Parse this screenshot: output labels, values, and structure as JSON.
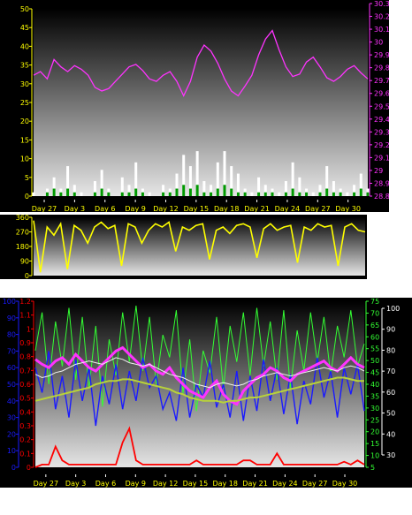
{
  "colors": {
    "frame": "#000000",
    "gradient_top": "#000000",
    "gradient_bottom": "#e6e6e6",
    "white": "#ffffff",
    "magenta": "#ff33ff",
    "green": "#009900",
    "yellow": "#ffff00",
    "lime": "#33ff33",
    "blue": "#1a1aff",
    "red": "#ff0000",
    "olive": "#b8d23a",
    "silver": "#f0f0f0"
  },
  "x_ticks": [
    "Day 27",
    "Day 3",
    "Day 6",
    "Day 9",
    "Day 12",
    "Day 15",
    "Day 18",
    "Day 21",
    "Day 24",
    "Day 27",
    "Day 30"
  ],
  "chart_data": [
    {
      "type": "line",
      "panel": "top",
      "x_ticks": [
        "Day 27",
        "Day 3",
        "Day 6",
        "Day 9",
        "Day 12",
        "Day 15",
        "Day 18",
        "Day 21",
        "Day 24",
        "Day 27",
        "Day 30"
      ],
      "y_left_ticks": [
        "0",
        "5",
        "10",
        "15",
        "20",
        "25",
        "30",
        "35",
        "40",
        "45",
        "50"
      ],
      "y_right_ticks": [
        "28.8",
        "28.9",
        "29",
        "29.1",
        "29.2",
        "29.3",
        "29.4",
        "29.5",
        "29.6",
        "29.7",
        "29.8",
        "29.9",
        "30",
        "30.1",
        "30.2",
        "30.3"
      ],
      "ylim_left": [
        0,
        50
      ],
      "ylim_right": [
        28.75,
        30.3
      ],
      "grid": false,
      "series": [
        {
          "axis": "right",
          "color": "magenta",
          "style": "line",
          "values": [
            29.75,
            29.78,
            29.72,
            29.88,
            29.82,
            29.78,
            29.83,
            29.8,
            29.75,
            29.65,
            29.62,
            29.64,
            29.7,
            29.76,
            29.82,
            29.84,
            29.79,
            29.72,
            29.7,
            29.75,
            29.78,
            29.7,
            29.58,
            29.7,
            29.9,
            30.0,
            29.95,
            29.85,
            29.72,
            29.62,
            29.58,
            29.66,
            29.75,
            29.92,
            30.05,
            30.12,
            29.96,
            29.82,
            29.74,
            29.76,
            29.86,
            29.9,
            29.82,
            29.73,
            29.7,
            29.74,
            29.8,
            29.83,
            29.77,
            29.72
          ]
        },
        {
          "axis": "left",
          "color": "white",
          "style": "bar",
          "values": [
            1,
            0,
            2,
            5,
            2,
            8,
            3,
            1,
            0,
            4,
            7,
            2,
            0,
            5,
            3,
            9,
            2,
            1,
            0,
            3,
            2,
            6,
            11,
            8,
            12,
            4,
            3,
            9,
            12,
            8,
            6,
            2,
            1,
            5,
            3,
            2,
            1,
            4,
            9,
            5,
            2,
            1,
            3,
            8,
            4,
            2,
            1,
            3,
            6,
            2
          ]
        },
        {
          "axis": "left",
          "color": "green",
          "style": "bar",
          "values": [
            0,
            0,
            1,
            2,
            1,
            2,
            1,
            0,
            0,
            1,
            2,
            1,
            0,
            1,
            1,
            2,
            1,
            0,
            0,
            1,
            1,
            2,
            3,
            2,
            3,
            1,
            1,
            2,
            3,
            2,
            1,
            1,
            0,
            1,
            1,
            1,
            0,
            1,
            2,
            1,
            1,
            0,
            1,
            2,
            1,
            1,
            0,
            1,
            2,
            1
          ]
        }
      ]
    },
    {
      "type": "line",
      "panel": "middle",
      "y_left_ticks": [
        "0",
        "90",
        "180",
        "270",
        "360"
      ],
      "ylim_left": [
        0,
        360
      ],
      "grid": false,
      "series": [
        {
          "axis": "left",
          "color": "yellow",
          "style": "line",
          "values": [
            340,
            20,
            300,
            250,
            320,
            40,
            310,
            280,
            200,
            300,
            330,
            290,
            310,
            60,
            320,
            300,
            200,
            280,
            320,
            300,
            330,
            150,
            300,
            280,
            310,
            320,
            100,
            280,
            300,
            260,
            310,
            320,
            300,
            110,
            290,
            320,
            280,
            300,
            310,
            80,
            300,
            280,
            320,
            300,
            310,
            60,
            300,
            320,
            280,
            270
          ]
        }
      ]
    },
    {
      "type": "line",
      "panel": "bottom",
      "x_ticks": [
        "Day 27",
        "Day 3",
        "Day 6",
        "Day 9",
        "Day 12",
        "Day 15",
        "Day 18",
        "Day 21",
        "Day 24",
        "Day 27",
        "Day 30"
      ],
      "y_left_outer_ticks": [
        "0",
        "10",
        "20",
        "30",
        "40",
        "50",
        "60",
        "70",
        "80",
        "90",
        "100"
      ],
      "y_left_inner_ticks": [
        "0",
        "0.1",
        "0.2",
        "0.3",
        "0.4",
        "0.5",
        "0.6",
        "0.7",
        "0.8",
        "0.9",
        "1",
        "1.1",
        "1.2"
      ],
      "y_right_inner_ticks": [
        "5",
        "10",
        "15",
        "20",
        "25",
        "30",
        "35",
        "40",
        "45",
        "50",
        "55",
        "60",
        "65",
        "70",
        "75"
      ],
      "y_right_outer_ticks": [
        "30",
        "40",
        "50",
        "60",
        "70",
        "80",
        "90",
        "100"
      ],
      "ylim_left_outer": [
        0,
        100
      ],
      "ylim_left_inner": [
        0,
        1.2
      ],
      "ylim_right_inner": [
        3,
        77
      ],
      "grid": false,
      "series": [
        {
          "axis": "right_inner",
          "color": "lime",
          "style": "line",
          "values": [
            55,
            72,
            40,
            68,
            48,
            74,
            42,
            70,
            38,
            66,
            30,
            60,
            44,
            72,
            50,
            75,
            46,
            70,
            40,
            62,
            52,
            73,
            36,
            60,
            28,
            55,
            45,
            70,
            38,
            66,
            50,
            72,
            44,
            74,
            48,
            68,
            42,
            73,
            38,
            64,
            46,
            72,
            50,
            70,
            44,
            66,
            52,
            73,
            48,
            58
          ]
        },
        {
          "axis": "left_outer",
          "color": "blue",
          "style": "line",
          "values": [
            60,
            45,
            70,
            35,
            55,
            30,
            65,
            40,
            60,
            25,
            55,
            38,
            62,
            35,
            58,
            40,
            66,
            48,
            55,
            35,
            45,
            28,
            60,
            30,
            50,
            42,
            64,
            36,
            50,
            30,
            58,
            28,
            55,
            34,
            65,
            40,
            60,
            32,
            56,
            26,
            52,
            38,
            66,
            42,
            58,
            30,
            60,
            44,
            62,
            34
          ]
        },
        {
          "axis": "left_outer",
          "color": "magenta",
          "style": "line",
          "values": [
            65,
            62,
            60,
            64,
            66,
            62,
            68,
            64,
            60,
            58,
            62,
            66,
            70,
            72,
            68,
            64,
            60,
            62,
            58,
            56,
            60,
            54,
            50,
            46,
            44,
            42,
            48,
            52,
            44,
            40,
            38,
            46,
            50,
            54,
            56,
            60,
            58,
            54,
            52,
            56,
            58,
            60,
            62,
            64,
            60,
            58,
            62,
            66,
            62,
            60
          ]
        },
        {
          "axis": "left_outer",
          "color": "silver",
          "style": "line",
          "values": [
            56,
            54,
            55,
            57,
            58,
            60,
            62,
            63,
            64,
            63,
            62,
            64,
            66,
            65,
            63,
            62,
            61,
            62,
            60,
            58,
            56,
            55,
            54,
            52,
            50,
            49,
            48,
            50,
            51,
            50,
            49,
            50,
            52,
            53,
            55,
            56,
            57,
            56,
            55,
            56,
            57,
            58,
            59,
            60,
            59,
            58,
            60,
            61,
            60,
            58
          ]
        },
        {
          "axis": "left_outer",
          "color": "olive",
          "style": "line",
          "values": [
            40,
            41,
            42,
            43,
            44,
            45,
            46,
            47,
            48,
            50,
            51,
            52,
            52,
            53,
            53,
            52,
            51,
            50,
            49,
            48,
            47,
            45,
            44,
            42,
            41,
            40,
            40,
            40,
            39,
            40,
            40,
            41,
            42,
            42,
            43,
            44,
            45,
            46,
            47,
            48,
            49,
            50,
            51,
            52,
            53,
            54,
            54,
            53,
            52,
            52
          ]
        },
        {
          "axis": "left_inner",
          "color": "red",
          "style": "line",
          "values": [
            0,
            0.02,
            0.02,
            0.15,
            0.05,
            0.02,
            0.02,
            0.02,
            0.02,
            0.02,
            0.02,
            0.02,
            0.02,
            0.18,
            0.28,
            0.05,
            0.02,
            0.02,
            0.02,
            0.02,
            0.02,
            0.02,
            0.02,
            0.02,
            0.05,
            0.02,
            0.02,
            0.02,
            0.02,
            0.02,
            0.02,
            0.05,
            0.05,
            0.02,
            0.02,
            0.02,
            0.1,
            0.02,
            0.02,
            0.02,
            0.02,
            0.02,
            0.02,
            0.02,
            0.02,
            0.02,
            0.04,
            0.02,
            0.05,
            0.02
          ]
        }
      ]
    }
  ]
}
